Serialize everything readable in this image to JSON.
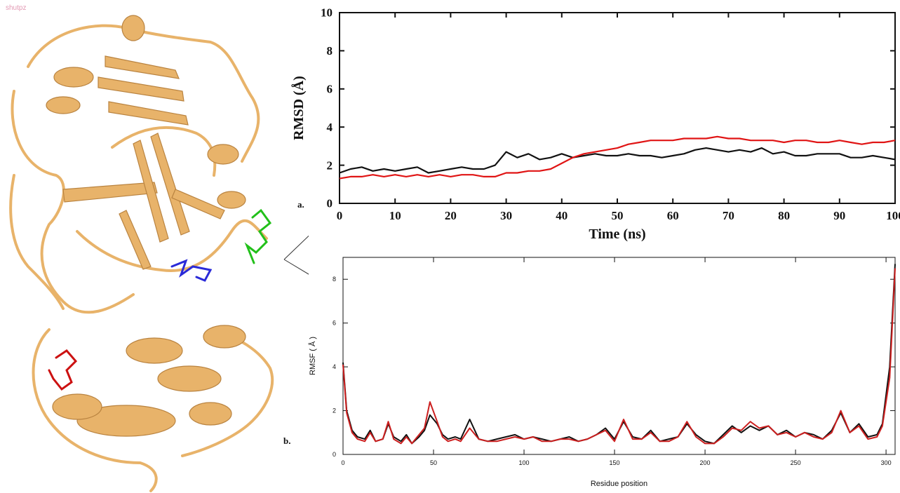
{
  "figure": {
    "corner_label": "shutpz",
    "panel_a_label": "a.",
    "panel_b_label": "b."
  },
  "structure": {
    "colors": {
      "ribbon": "#E8B36A",
      "ribbon_dark": "#B98340",
      "ligand_green": "#22c01a",
      "ligand_blue": "#2a2ad8",
      "ligand_red": "#cc1111"
    }
  },
  "chart_data": [
    {
      "type": "line",
      "title": "",
      "xlabel": "Time (ns)",
      "ylabel": "RMSD (Å)",
      "xlim": [
        0,
        100
      ],
      "ylim": [
        0,
        10
      ],
      "xticks": [
        0,
        10,
        20,
        30,
        40,
        50,
        60,
        70,
        80,
        90,
        100
      ],
      "yticks": [
        0,
        2,
        4,
        6,
        8,
        10
      ],
      "grid": false,
      "series": [
        {
          "color": "#111111",
          "x": [
            0,
            2,
            4,
            6,
            8,
            10,
            12,
            14,
            16,
            18,
            20,
            22,
            24,
            26,
            28,
            30,
            32,
            34,
            36,
            38,
            40,
            42,
            44,
            46,
            48,
            50,
            52,
            54,
            56,
            58,
            60,
            62,
            64,
            66,
            68,
            70,
            72,
            74,
            76,
            78,
            80,
            82,
            84,
            86,
            88,
            90,
            92,
            94,
            96,
            98,
            100
          ],
          "y": [
            1.6,
            1.8,
            1.9,
            1.7,
            1.8,
            1.7,
            1.8,
            1.9,
            1.6,
            1.7,
            1.8,
            1.9,
            1.8,
            1.8,
            2.0,
            2.7,
            2.4,
            2.6,
            2.3,
            2.4,
            2.6,
            2.4,
            2.5,
            2.6,
            2.5,
            2.5,
            2.6,
            2.5,
            2.5,
            2.4,
            2.5,
            2.6,
            2.8,
            2.9,
            2.8,
            2.7,
            2.8,
            2.7,
            2.9,
            2.6,
            2.7,
            2.5,
            2.5,
            2.6,
            2.6,
            2.6,
            2.4,
            2.4,
            2.5,
            2.4,
            2.3
          ]
        },
        {
          "color": "#e01414",
          "x": [
            0,
            2,
            4,
            6,
            8,
            10,
            12,
            14,
            16,
            18,
            20,
            22,
            24,
            26,
            28,
            30,
            32,
            34,
            36,
            38,
            40,
            42,
            44,
            46,
            48,
            50,
            52,
            54,
            56,
            58,
            60,
            62,
            64,
            66,
            68,
            70,
            72,
            74,
            76,
            78,
            80,
            82,
            84,
            86,
            88,
            90,
            92,
            94,
            96,
            98,
            100
          ],
          "y": [
            1.3,
            1.4,
            1.4,
            1.5,
            1.4,
            1.5,
            1.4,
            1.5,
            1.4,
            1.5,
            1.4,
            1.5,
            1.5,
            1.4,
            1.4,
            1.6,
            1.6,
            1.7,
            1.7,
            1.8,
            2.1,
            2.4,
            2.6,
            2.7,
            2.8,
            2.9,
            3.1,
            3.2,
            3.3,
            3.3,
            3.3,
            3.4,
            3.4,
            3.4,
            3.5,
            3.4,
            3.4,
            3.3,
            3.3,
            3.3,
            3.2,
            3.3,
            3.3,
            3.2,
            3.2,
            3.3,
            3.2,
            3.1,
            3.2,
            3.2,
            3.3
          ]
        }
      ]
    },
    {
      "type": "line",
      "title": "",
      "xlabel": "Residue position",
      "ylabel": "RMSF ( Å )",
      "xlim": [
        0,
        305
      ],
      "ylim": [
        0,
        9
      ],
      "xticks": [
        0,
        50,
        100,
        150,
        200,
        250,
        300
      ],
      "yticks": [
        0,
        2,
        4,
        6,
        8
      ],
      "grid": false,
      "series": [
        {
          "color": "#111111",
          "x": [
            0,
            2,
            5,
            8,
            12,
            15,
            18,
            22,
            25,
            28,
            32,
            35,
            38,
            42,
            45,
            48,
            52,
            55,
            58,
            62,
            65,
            70,
            75,
            80,
            85,
            90,
            95,
            100,
            105,
            110,
            115,
            120,
            125,
            130,
            135,
            140,
            145,
            150,
            155,
            160,
            165,
            170,
            175,
            180,
            185,
            190,
            195,
            200,
            205,
            210,
            215,
            220,
            225,
            230,
            235,
            240,
            245,
            250,
            255,
            260,
            265,
            270,
            275,
            280,
            285,
            290,
            295,
            298,
            302,
            305
          ],
          "x_note": "",
          "y": [
            4.2,
            2.0,
            1.1,
            0.8,
            0.7,
            1.1,
            0.6,
            0.7,
            1.4,
            0.8,
            0.6,
            0.9,
            0.5,
            0.8,
            1.1,
            1.8,
            1.4,
            0.9,
            0.7,
            0.8,
            0.7,
            1.6,
            0.7,
            0.6,
            0.7,
            0.8,
            0.9,
            0.7,
            0.8,
            0.7,
            0.6,
            0.7,
            0.8,
            0.6,
            0.7,
            0.9,
            1.2,
            0.7,
            1.5,
            0.8,
            0.7,
            1.1,
            0.6,
            0.7,
            0.8,
            1.4,
            0.9,
            0.6,
            0.5,
            0.9,
            1.3,
            1.0,
            1.3,
            1.1,
            1.3,
            0.9,
            1.1,
            0.8,
            1.0,
            0.9,
            0.7,
            1.1,
            1.9,
            1.0,
            1.4,
            0.8,
            0.9,
            1.4,
            4.0,
            8.7
          ]
        },
        {
          "color": "#cc1f1f",
          "x": [
            0,
            2,
            5,
            8,
            12,
            15,
            18,
            22,
            25,
            28,
            32,
            35,
            38,
            42,
            45,
            48,
            52,
            55,
            58,
            62,
            65,
            70,
            75,
            80,
            85,
            90,
            95,
            100,
            105,
            110,
            115,
            120,
            125,
            130,
            135,
            140,
            145,
            150,
            155,
            160,
            165,
            170,
            175,
            180,
            185,
            190,
            195,
            200,
            205,
            210,
            215,
            220,
            225,
            230,
            235,
            240,
            245,
            250,
            255,
            260,
            265,
            270,
            275,
            280,
            285,
            290,
            295,
            298,
            302,
            305
          ],
          "y": [
            4.1,
            1.9,
            1.0,
            0.7,
            0.6,
            1.0,
            0.6,
            0.7,
            1.5,
            0.7,
            0.5,
            0.8,
            0.5,
            0.9,
            1.2,
            2.4,
            1.5,
            0.8,
            0.6,
            0.7,
            0.6,
            1.2,
            0.7,
            0.6,
            0.6,
            0.7,
            0.8,
            0.7,
            0.8,
            0.6,
            0.6,
            0.7,
            0.7,
            0.6,
            0.7,
            0.9,
            1.1,
            0.6,
            1.6,
            0.7,
            0.7,
            1.0,
            0.6,
            0.6,
            0.8,
            1.5,
            0.8,
            0.5,
            0.5,
            0.8,
            1.2,
            1.1,
            1.5,
            1.2,
            1.3,
            0.9,
            1.0,
            0.8,
            1.0,
            0.8,
            0.7,
            1.0,
            2.0,
            1.0,
            1.3,
            0.7,
            0.8,
            1.3,
            3.5,
            8.5
          ]
        }
      ]
    }
  ]
}
